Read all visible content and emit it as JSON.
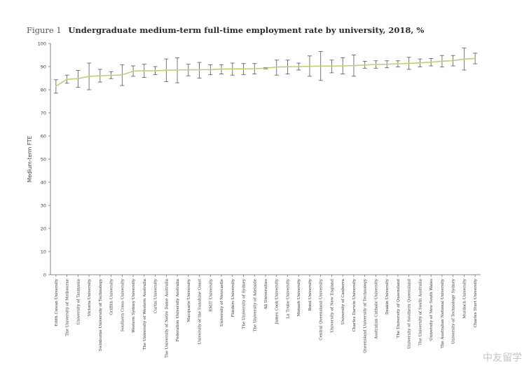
{
  "figure_label": "Figure 1",
  "watermark_text": "中友留学",
  "chart_data": {
    "type": "line",
    "title": "Undergraduate medium-term full-time employment rate by university, 2018, %",
    "xlabel": "",
    "ylabel": "Medium-term FTE",
    "ylim": [
      0,
      100
    ],
    "yticks": [
      0,
      10,
      20,
      30,
      40,
      50,
      60,
      70,
      80,
      90,
      100
    ],
    "line_color": "#b6d37a",
    "errorbar_color": "#555555",
    "categories": [
      "Edith Cowan University",
      "The University of Melbourne",
      "University of Tasmania",
      "Victoria University",
      "Swinburne University of Technology",
      "Griffith University",
      "Southern Cross University",
      "Western Sydney University",
      "The University of Western Australia",
      "Curtin University",
      "The University of Notre Dame Australia",
      "Federation University Australia",
      "Macquarie University",
      "University of the Sunshine Coast",
      "RMIT University",
      "University of Newcastle",
      "Flinders University",
      "The University of Sydney",
      "The University of Adelaide",
      "All Universities",
      "James Cook University",
      "La Trobe University",
      "Monash University",
      "Bond University",
      "Central Queensland University",
      "University of New England",
      "University of Canberra",
      "Charles Darwin University",
      "Queensland University of Technology",
      "Australian Catholic University",
      "Deakin University",
      "The University of Queensland",
      "University of Southern Queensland",
      "The University of South Australia",
      "University of New South Wales",
      "The Australian National University",
      "University of Technology Sydney",
      "Murdoch University",
      "Charles Sturt University"
    ],
    "values": [
      81.5,
      84.5,
      84.8,
      85.8,
      86.0,
      86.2,
      86.4,
      88.0,
      88.2,
      88.2,
      88.4,
      88.5,
      88.6,
      88.6,
      88.7,
      88.9,
      89.0,
      89.0,
      89.1,
      89.3,
      89.8,
      89.9,
      90.0,
      90.1,
      90.2,
      90.2,
      90.3,
      90.4,
      90.7,
      90.9,
      91.0,
      91.2,
      91.4,
      91.6,
      91.9,
      92.3,
      92.6,
      93.2,
      93.5
    ],
    "lower": [
      78.5,
      82.8,
      81.0,
      80.0,
      83.3,
      84.8,
      81.8,
      85.8,
      85.3,
      86.5,
      83.5,
      83.0,
      86.0,
      85.0,
      86.5,
      86.8,
      86.3,
      86.5,
      86.8,
      89.0,
      86.3,
      86.8,
      88.5,
      85.8,
      84.0,
      87.3,
      86.8,
      85.8,
      89.3,
      89.3,
      89.5,
      89.8,
      88.8,
      89.9,
      90.3,
      89.8,
      90.3,
      88.5,
      91.2
    ],
    "upper": [
      84.3,
      86.3,
      88.3,
      91.5,
      88.8,
      87.8,
      90.8,
      90.3,
      91.0,
      90.0,
      93.3,
      93.8,
      91.0,
      91.8,
      90.8,
      90.8,
      91.5,
      91.3,
      91.3,
      89.6,
      92.8,
      92.8,
      91.5,
      94.6,
      96.5,
      92.8,
      93.8,
      95.0,
      92.3,
      92.5,
      92.5,
      92.5,
      94.0,
      93.3,
      93.5,
      94.8,
      94.8,
      98.0,
      95.8
    ]
  }
}
